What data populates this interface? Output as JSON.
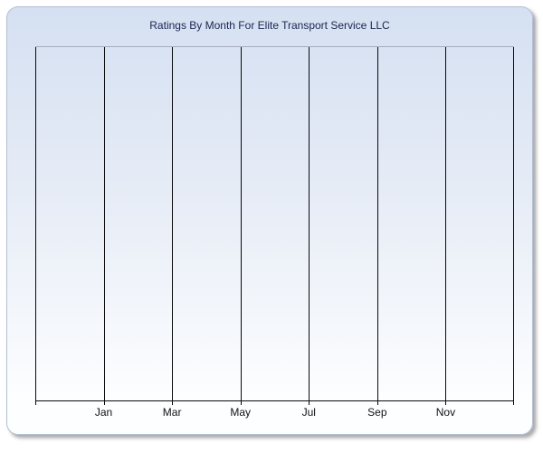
{
  "colors": {
    "page_bg": "#ffffff",
    "panel_top": "#d5e0f2",
    "panel_mid": "#e9eef7",
    "panel_bottom": "#fdfeff",
    "panel_border": "#b3bfd6",
    "shadow": "#8c8c8c",
    "title_text": "#1b2550",
    "plot_top_border": "#a6acbe",
    "gridline": "#0a0a0a",
    "axis": "#0a0a0a",
    "label_text": "#121212"
  },
  "chart_data": {
    "type": "line",
    "title": "Ratings By Month For Elite Transport Service LLC",
    "x_tick_labels": [
      "Jan",
      "Mar",
      "May",
      "Jul",
      "Sep",
      "Nov"
    ],
    "y_tick_labels": [],
    "series": [],
    "plot_state": "empty - no data points plotted",
    "grid": "vertical gridlines only, 7 equal columns",
    "legend": "none",
    "xlabel": "",
    "ylabel": ""
  }
}
